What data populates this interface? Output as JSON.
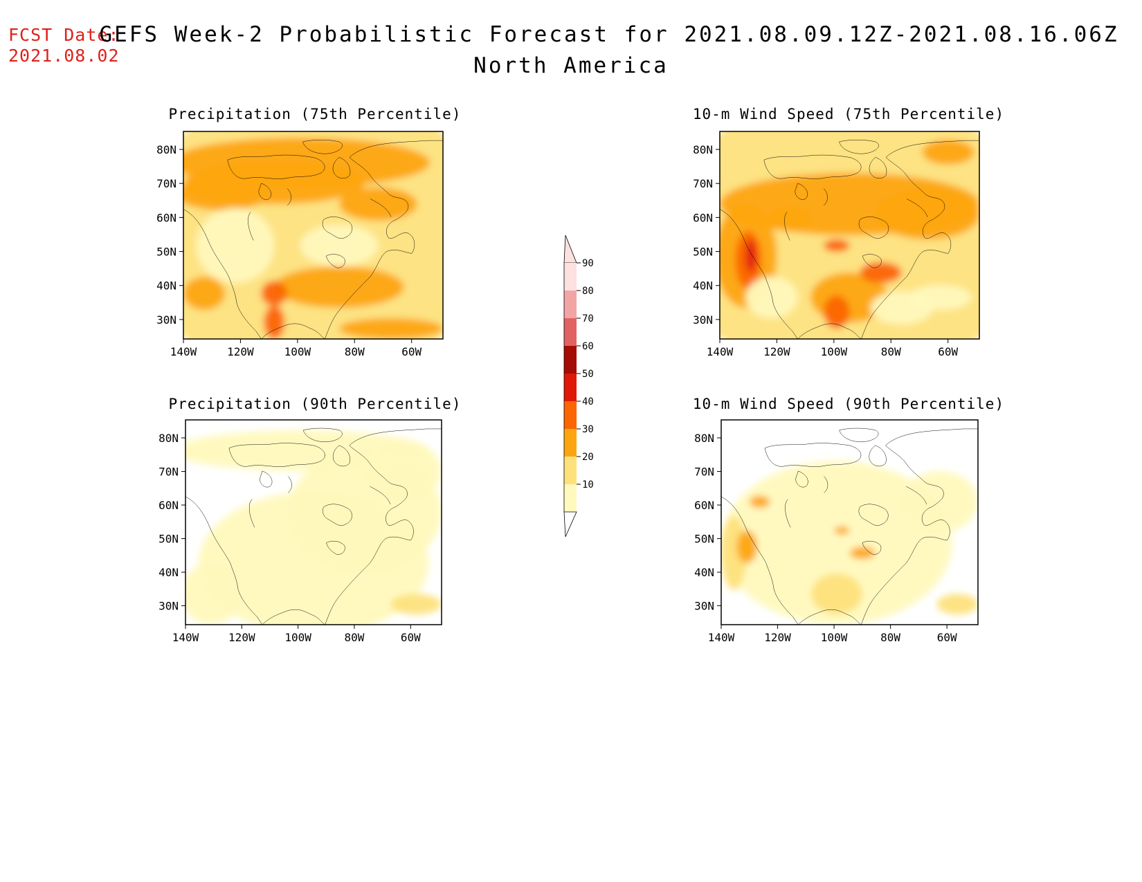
{
  "fcst_date": {
    "label": "FCST Date:",
    "value": "2021.08.02"
  },
  "title": "GEFS Week-2 Probabilistic Forecast for 2021.08.09.12Z-2021.08.16.06Z",
  "subtitle": "North America",
  "axes": {
    "x_ticks": [
      "140W",
      "120W",
      "100W",
      "80W",
      "60W"
    ],
    "y_ticks": [
      "80N",
      "70N",
      "60N",
      "50N",
      "40N",
      "30N"
    ]
  },
  "panels": [
    {
      "id": "precip75",
      "title": "Precipitation (75th Percentile)",
      "variable": "precipitation",
      "percentile": 75,
      "dominant_prob": "20-40"
    },
    {
      "id": "wind75",
      "title": "10-m Wind Speed (75th Percentile)",
      "variable": "wind",
      "percentile": 75,
      "dominant_prob": "20-60"
    },
    {
      "id": "precip90",
      "title": "Precipitation (90th Percentile)",
      "variable": "precipitation",
      "percentile": 90,
      "dominant_prob": "0-20"
    },
    {
      "id": "wind90",
      "title": "10-m Wind Speed (90th Percentile)",
      "variable": "wind",
      "percentile": 90,
      "dominant_prob": "0-30"
    }
  ],
  "colorbar": {
    "levels": [
      "10",
      "20",
      "30",
      "40",
      "50",
      "60",
      "70",
      "80",
      "90"
    ],
    "colors": [
      "#fff9bd",
      "#fde27c",
      "#fda510",
      "#fb6504",
      "#e01808",
      "#a50c04",
      "#e06262",
      "#f2a5a5",
      "#fde0e0"
    ]
  },
  "colors": {
    "fcst": "#e0201a"
  }
}
